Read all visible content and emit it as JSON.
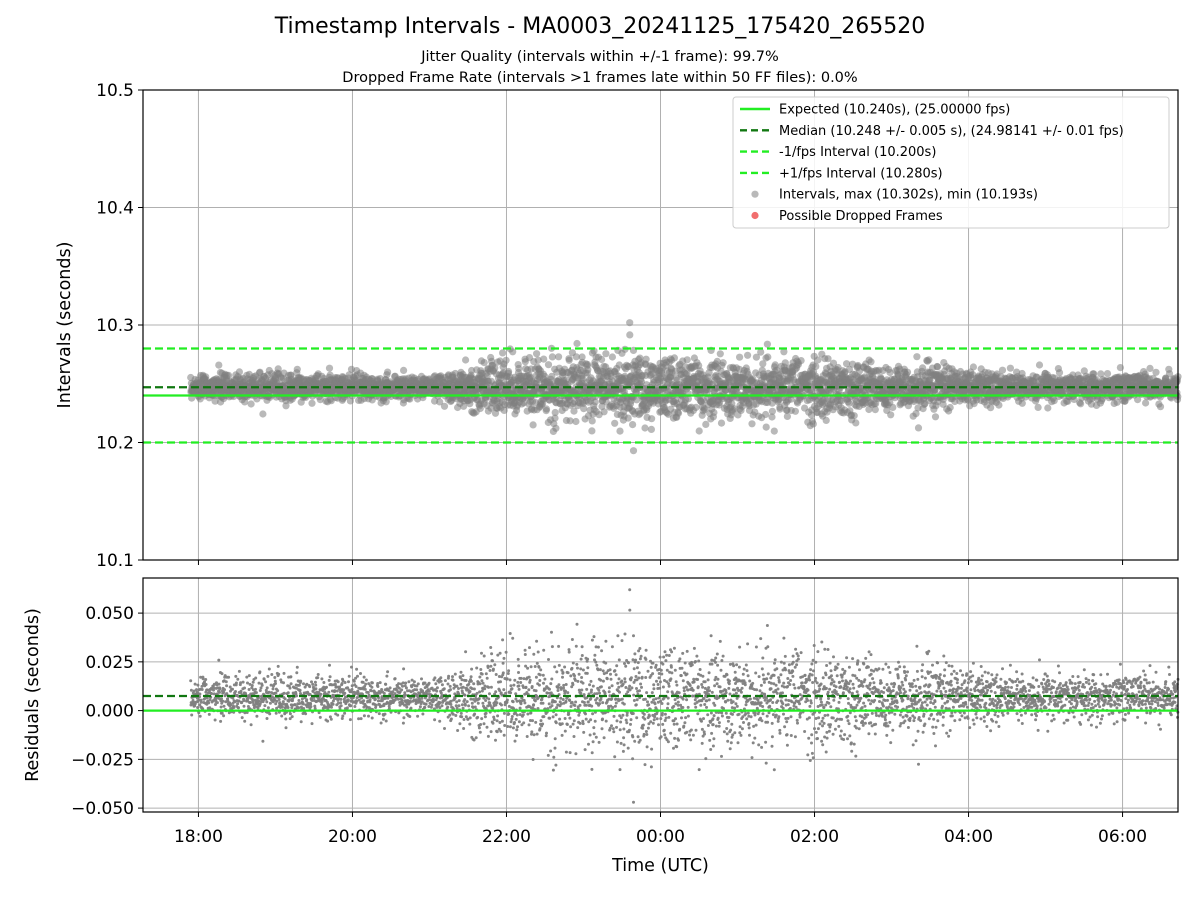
{
  "header": {
    "title": "Timestamp Intervals - MA0003_20241125_175420_265520",
    "subtitle_jitter": "Jitter Quality (intervals within +/-1 frame): 99.7%",
    "subtitle_dropped": "Dropped Frame Rate (intervals >1 frames late within 50 FF files): 0.0%"
  },
  "colors": {
    "expected": "#22ee22",
    "median": "#117711",
    "interval_line": "#22ee22",
    "points": "#808080",
    "dropped": "#ee5555",
    "grid": "#b0b0b0"
  },
  "chart_data": [
    {
      "type": "scatter",
      "panel": "intervals",
      "xlabel": "",
      "ylabel": "Intervals (seconds)",
      "ylim": [
        10.1,
        10.5
      ],
      "yticks": [
        10.1,
        10.2,
        10.3,
        10.4,
        10.5
      ],
      "ytick_labels": [
        "10.1",
        "10.2",
        "10.3",
        "10.4",
        "10.5"
      ],
      "x_range_hours_from_midnight": [
        -6.72,
        6.72
      ],
      "grid": true,
      "legend_position": "upper right",
      "reference_lines": [
        {
          "name": "Expected (10.240s), (25.00000 fps)",
          "y": 10.24,
          "style": "solid",
          "color": "#22ee22"
        },
        {
          "name": "Median (10.248 +/- 0.005 s), (24.98141 +/- 0.01 fps)",
          "y": 10.247,
          "style": "dashed",
          "color": "#117711"
        },
        {
          "name": "-1/fps Interval (10.200s)",
          "y": 10.2,
          "style": "dashed",
          "color": "#22ee22"
        },
        {
          "name": "+1/fps Interval (10.280s)",
          "y": 10.28,
          "style": "dashed",
          "color": "#22ee22"
        }
      ],
      "series": [
        {
          "name": "Intervals, max (10.302s), min (10.193s)",
          "color": "#808080",
          "max": 10.302,
          "min": 10.193,
          "center": 10.247
        },
        {
          "name": "Possible Dropped Frames",
          "color": "#ee5555",
          "values": []
        }
      ],
      "spread_profile": {
        "description_times": [
          "18:00",
          "19:00",
          "20:00",
          "21:00",
          "21:30",
          "22:00",
          "23:00",
          "00:00",
          "01:00",
          "02:00",
          "03:00",
          "04:00",
          "04:30",
          "05:00",
          "06:00",
          "06:40"
        ],
        "std_seconds": [
          0.006,
          0.007,
          0.006,
          0.005,
          0.01,
          0.016,
          0.015,
          0.016,
          0.015,
          0.014,
          0.012,
          0.01,
          0.006,
          0.007,
          0.007,
          0.006
        ]
      }
    },
    {
      "type": "scatter",
      "panel": "residuals",
      "xlabel": "Time (UTC)",
      "ylabel": "Residuals (seconds)",
      "ylim": [
        -0.052,
        0.068
      ],
      "yticks": [
        -0.05,
        -0.025,
        0.0,
        0.025,
        0.05
      ],
      "ytick_labels": [
        "−0.050",
        "−0.025",
        "0.000",
        "0.025",
        "0.050"
      ],
      "xticks": [
        "18:00",
        "20:00",
        "22:00",
        "00:00",
        "02:00",
        "04:00",
        "06:00"
      ],
      "grid": true,
      "reference_lines": [
        {
          "name": "Expected",
          "y": 0.0,
          "style": "solid",
          "color": "#22ee22"
        },
        {
          "name": "Median",
          "y": 0.0075,
          "style": "dashed",
          "color": "#117711"
        }
      ],
      "series": [
        {
          "name": "Residuals",
          "color": "#808080",
          "max": 0.062,
          "min": -0.047
        }
      ]
    }
  ]
}
